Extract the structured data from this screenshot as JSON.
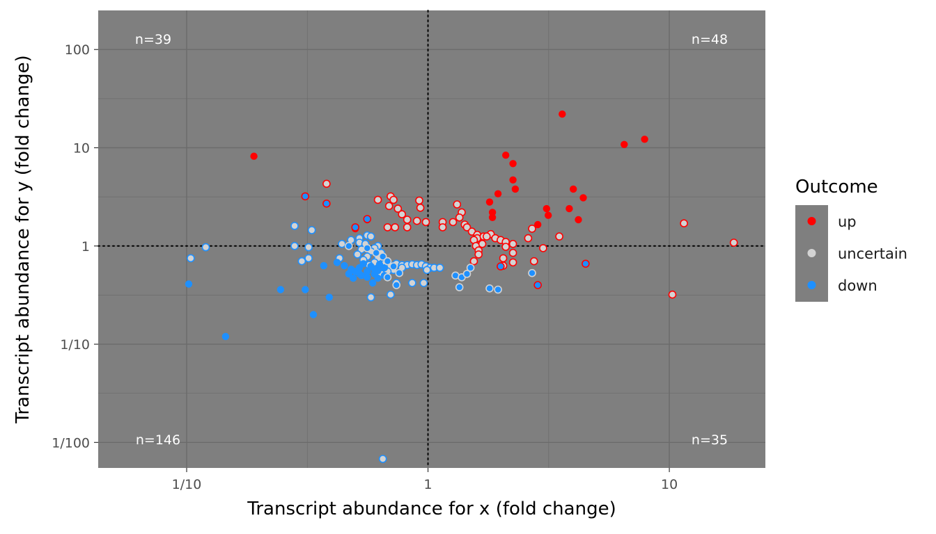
{
  "chart_data": {
    "type": "scatter",
    "title": "",
    "xlabel": "Transcript abundance for x (fold change)",
    "ylabel": "Transcript abundance for y (fold change)",
    "x_scale": "log10",
    "y_scale": "log10",
    "xlim": [
      0.043,
      25
    ],
    "ylim": [
      0.0055,
      250
    ],
    "x_ticks": [
      {
        "value": 0.1,
        "label": "1/10"
      },
      {
        "value": 1,
        "label": "1"
      },
      {
        "value": 10,
        "label": "10"
      }
    ],
    "y_ticks": [
      {
        "value": 0.01,
        "label": "1/100"
      },
      {
        "value": 0.1,
        "label": "1/10"
      },
      {
        "value": 1,
        "label": "1"
      },
      {
        "value": 10,
        "label": "10"
      },
      {
        "value": 100,
        "label": "100"
      }
    ],
    "reference_lines": [
      {
        "axis": "x",
        "value": 1,
        "style": "dotted"
      },
      {
        "axis": "y",
        "value": 1,
        "style": "dotted"
      }
    ],
    "grid": true,
    "panel_background": "#7f7f7f",
    "grid_color": "#6b6b6b",
    "quadrant_counts": [
      {
        "position": "top-left",
        "label": "n=39"
      },
      {
        "position": "top-right",
        "label": "n=48"
      },
      {
        "position": "bottom-left",
        "label": "n=146"
      },
      {
        "position": "bottom-right",
        "label": "n=35"
      }
    ],
    "legend": {
      "title": "Outcome",
      "placement": "right",
      "entries": [
        {
          "label": "up",
          "color": "#ff0000"
        },
        {
          "label": "uncertain",
          "color": "#d3d3d3"
        },
        {
          "label": "down",
          "color": "#1e90ff"
        }
      ]
    },
    "series": [
      {
        "name": "up",
        "fill": "#ff0000",
        "points": [
          [
            3.6,
            22
          ],
          [
            6.5,
            10.8
          ],
          [
            7.9,
            12.2
          ],
          [
            2.1,
            8.4
          ],
          [
            2.25,
            6.9
          ],
          [
            2.25,
            4.7
          ],
          [
            2.3,
            3.8
          ],
          [
            1.95,
            3.4
          ],
          [
            1.8,
            2.8
          ],
          [
            1.85,
            2.2
          ],
          [
            1.85,
            1.95
          ],
          [
            2.85,
            1.65
          ],
          [
            3.1,
            2.4
          ],
          [
            3.15,
            2.05
          ],
          [
            4.0,
            3.8
          ],
          [
            4.4,
            3.1
          ],
          [
            3.85,
            2.4
          ],
          [
            4.2,
            1.85
          ],
          [
            0.19,
            8.2
          ],
          [
            0.56,
            1.85
          ],
          [
            0.5,
            1.5
          ]
        ]
      },
      {
        "name": "uncertain",
        "fill": "#d3d3d3",
        "stroke": "#ff0000",
        "points": [
          [
            0.38,
            4.3
          ],
          [
            0.62,
            2.95
          ],
          [
            0.7,
            3.2
          ],
          [
            0.72,
            2.95
          ],
          [
            0.69,
            2.55
          ],
          [
            0.75,
            2.4
          ],
          [
            0.78,
            2.1
          ],
          [
            0.82,
            1.85
          ],
          [
            0.9,
            1.8
          ],
          [
            0.92,
            2.9
          ],
          [
            0.93,
            2.45
          ],
          [
            0.82,
            1.55
          ],
          [
            0.68,
            1.55
          ],
          [
            0.73,
            1.55
          ],
          [
            0.98,
            1.75
          ],
          [
            1.15,
            1.75
          ],
          [
            1.15,
            1.55
          ],
          [
            1.27,
            1.75
          ],
          [
            1.32,
            2.65
          ],
          [
            1.38,
            2.2
          ],
          [
            1.35,
            1.95
          ],
          [
            1.42,
            1.65
          ],
          [
            1.45,
            1.55
          ],
          [
            1.52,
            1.4
          ],
          [
            1.6,
            1.3
          ],
          [
            1.6,
            1.2
          ],
          [
            1.7,
            1.25
          ],
          [
            1.82,
            1.32
          ],
          [
            1.55,
            1.15
          ],
          [
            1.58,
            1.0
          ],
          [
            1.68,
            1.05
          ],
          [
            1.75,
            1.25
          ],
          [
            1.9,
            1.2
          ],
          [
            2.0,
            1.15
          ],
          [
            2.1,
            1.1
          ],
          [
            2.25,
            1.05
          ],
          [
            2.1,
            0.98
          ],
          [
            2.25,
            0.85
          ],
          [
            2.05,
            0.75
          ],
          [
            2.25,
            0.68
          ],
          [
            2.05,
            0.63
          ],
          [
            1.62,
            0.9
          ],
          [
            1.62,
            0.82
          ],
          [
            1.55,
            0.7
          ],
          [
            2.6,
            1.2
          ],
          [
            2.7,
            1.5
          ],
          [
            3.0,
            0.95
          ],
          [
            3.5,
            1.25
          ],
          [
            2.75,
            0.7
          ],
          [
            11.5,
            1.7
          ],
          [
            18.5,
            1.08
          ],
          [
            10.3,
            0.32
          ]
        ]
      },
      {
        "name": "uncertain",
        "fill": "#d3d3d3",
        "stroke": "#1e90ff",
        "points": [
          [
            0.28,
            1.6
          ],
          [
            0.28,
            1.0
          ],
          [
            0.33,
            1.45
          ],
          [
            0.32,
            0.97
          ],
          [
            0.32,
            0.75
          ],
          [
            0.3,
            0.7
          ],
          [
            0.12,
            0.97
          ],
          [
            0.104,
            0.75
          ],
          [
            0.43,
            0.75
          ],
          [
            0.44,
            1.05
          ],
          [
            0.48,
            1.15
          ],
          [
            0.52,
            1.2
          ],
          [
            0.56,
            1.28
          ],
          [
            0.58,
            1.25
          ],
          [
            0.52,
            1.08
          ],
          [
            0.55,
            1.05
          ],
          [
            0.62,
            1.0
          ],
          [
            0.6,
            0.95
          ],
          [
            0.53,
            0.92
          ],
          [
            0.58,
            0.88
          ],
          [
            0.64,
            0.85
          ],
          [
            0.51,
            0.82
          ],
          [
            0.56,
            0.78
          ],
          [
            0.62,
            0.75
          ],
          [
            0.54,
            0.72
          ],
          [
            0.6,
            0.68
          ],
          [
            0.66,
            0.66
          ],
          [
            0.57,
            0.64
          ],
          [
            0.7,
            0.63
          ],
          [
            0.74,
            0.66
          ],
          [
            0.78,
            0.64
          ],
          [
            0.82,
            0.64
          ],
          [
            0.86,
            0.65
          ],
          [
            0.9,
            0.64
          ],
          [
            0.94,
            0.65
          ],
          [
            0.98,
            0.62
          ],
          [
            1.02,
            0.6
          ],
          [
            0.99,
            0.57
          ],
          [
            1.06,
            0.6
          ],
          [
            1.12,
            0.6
          ],
          [
            0.78,
            0.6
          ],
          [
            0.72,
            0.57
          ],
          [
            0.68,
            0.55
          ],
          [
            0.64,
            0.52
          ],
          [
            0.58,
            0.3
          ],
          [
            0.7,
            0.32
          ],
          [
            0.74,
            0.42
          ],
          [
            0.86,
            0.42
          ],
          [
            0.96,
            0.42
          ],
          [
            0.65,
            0.0068
          ]
        ]
      },
      {
        "name": "down",
        "fill": "#1e90ff",
        "points": [
          [
            0.102,
            0.41
          ],
          [
            0.145,
            0.12
          ],
          [
            0.245,
            0.36
          ],
          [
            0.31,
            0.36
          ],
          [
            0.37,
            0.63
          ],
          [
            0.39,
            0.3
          ],
          [
            0.335,
            0.2
          ],
          [
            0.42,
            0.68
          ],
          [
            0.45,
            0.63
          ],
          [
            0.48,
            0.58
          ],
          [
            0.5,
            0.55
          ],
          [
            0.47,
            0.52
          ],
          [
            0.53,
            0.5
          ],
          [
            0.56,
            0.48
          ],
          [
            0.6,
            0.52
          ],
          [
            0.62,
            0.56
          ],
          [
            0.66,
            0.6
          ],
          [
            0.63,
            0.65
          ],
          [
            0.58,
            0.62
          ],
          [
            0.54,
            0.66
          ],
          [
            0.52,
            0.6
          ],
          [
            0.56,
            0.55
          ],
          [
            0.6,
            0.58
          ],
          [
            0.62,
            0.47
          ],
          [
            0.66,
            0.5
          ],
          [
            0.52,
            0.52
          ],
          [
            0.49,
            0.47
          ],
          [
            0.59,
            0.42
          ]
        ]
      },
      {
        "name": "uncertain",
        "fill": "#1e90ff",
        "stroke": "#d3d3d3",
        "points": [
          [
            0.47,
            1.0
          ],
          [
            0.56,
            0.95
          ],
          [
            0.61,
            0.85
          ],
          [
            0.65,
            0.78
          ],
          [
            0.68,
            0.7
          ],
          [
            0.72,
            0.62
          ],
          [
            0.76,
            0.53
          ],
          [
            0.68,
            0.48
          ],
          [
            1.3,
            0.5
          ],
          [
            1.38,
            0.48
          ],
          [
            1.45,
            0.52
          ],
          [
            1.5,
            0.6
          ],
          [
            1.35,
            0.38
          ],
          [
            1.8,
            0.37
          ],
          [
            1.95,
            0.36
          ],
          [
            2.7,
            0.53
          ],
          [
            0.74,
            0.4
          ]
        ]
      },
      {
        "name": "down",
        "fill": "#1e90ff",
        "stroke": "#ff0000",
        "points": [
          [
            0.31,
            3.2
          ],
          [
            0.38,
            2.7
          ],
          [
            0.5,
            1.55
          ],
          [
            0.56,
            1.88
          ],
          [
            2.0,
            0.62
          ],
          [
            2.85,
            0.4
          ],
          [
            4.5,
            0.66
          ]
        ]
      }
    ]
  }
}
